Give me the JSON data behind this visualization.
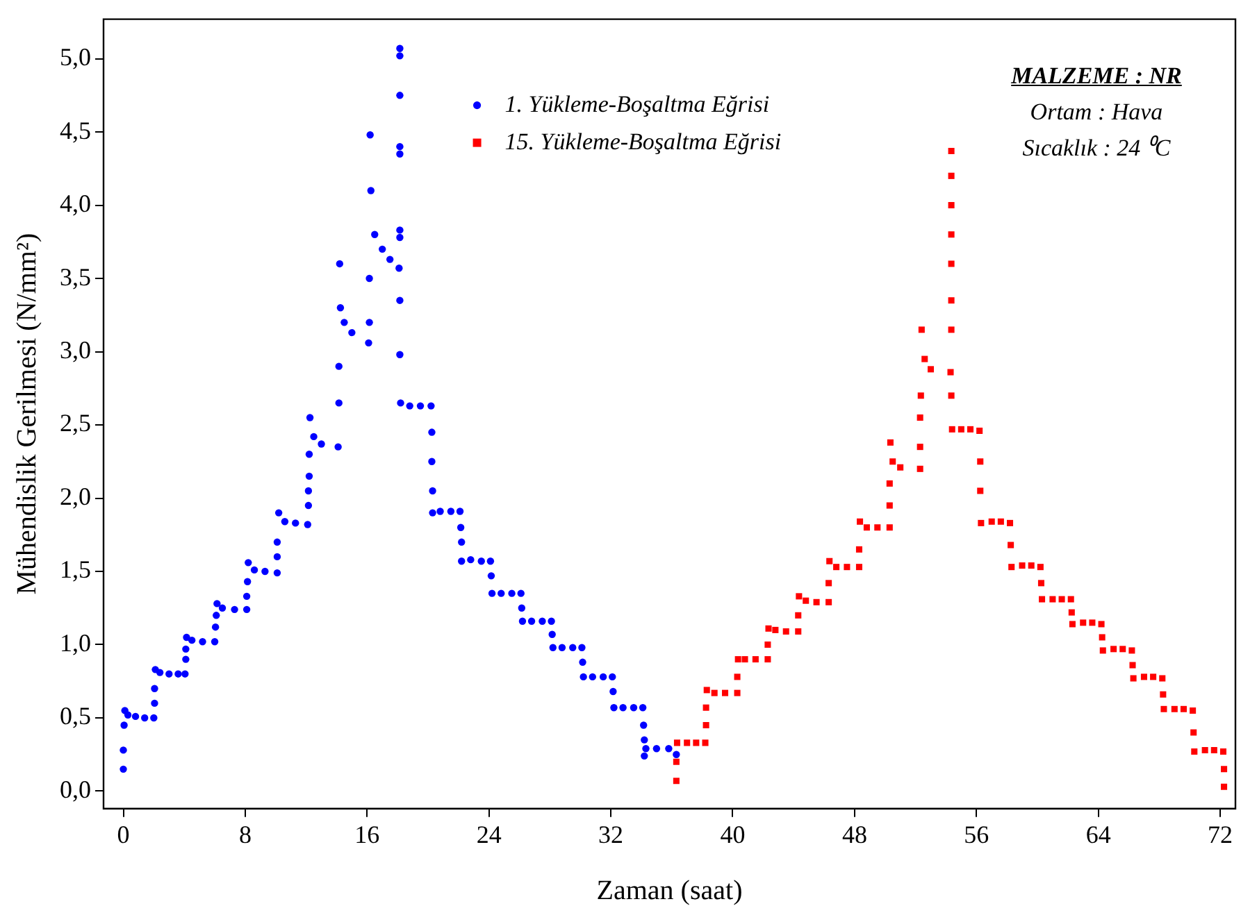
{
  "chart_data": {
    "type": "scatter",
    "xlabel": "Zaman (saat)",
    "ylabel": "Mühendislik Gerilmesi (N/mm²)",
    "annotations": [
      "MALZEME : NR",
      "Ortam : Hava",
      "Sıcaklık : 24 ⁰C"
    ],
    "xlim": [
      -1.3,
      73
    ],
    "ylim": [
      -0.12,
      5.27
    ],
    "xticks": [
      0,
      8,
      16,
      24,
      32,
      40,
      48,
      56,
      64,
      72
    ],
    "yticks": [
      {
        "value": 0,
        "label": "0,0"
      },
      {
        "value": 0.5,
        "label": "0,5"
      },
      {
        "value": 1,
        "label": "1,0"
      },
      {
        "value": 1.5,
        "label": "1,5"
      },
      {
        "value": 2,
        "label": "2,0"
      },
      {
        "value": 2.5,
        "label": "2,5"
      },
      {
        "value": 3,
        "label": "3,0"
      },
      {
        "value": 3.5,
        "label": "3,5"
      },
      {
        "value": 4,
        "label": "4,0"
      },
      {
        "value": 4.5,
        "label": "4,5"
      },
      {
        "value": 5,
        "label": "5,0"
      }
    ],
    "grid": false,
    "legend": "top",
    "series": [
      {
        "name": "1. Yükleme-Boşaltma Eğrisi",
        "color": "#0000ff",
        "marker": "circle",
        "x": [
          0,
          0,
          0.05,
          0.1,
          0.3,
          0.8,
          1.4,
          2.0,
          2.05,
          2.05,
          2.1,
          2.4,
          3.0,
          3.6,
          4.05,
          4.1,
          4.1,
          4.15,
          4.5,
          5.2,
          6.0,
          6.05,
          6.1,
          6.15,
          6.5,
          7.3,
          8.1,
          8.1,
          8.15,
          8.2,
          8.6,
          9.3,
          10.1,
          10.1,
          10.1,
          10.2,
          10.6,
          11.3,
          12.1,
          12.15,
          12.15,
          12.2,
          12.2,
          12.25,
          12.5,
          13.0,
          14.1,
          14.15,
          14.15,
          14.2,
          14.25,
          14.5,
          15.0,
          16.1,
          16.15,
          16.15,
          16.2,
          16.25,
          16.5,
          17.0,
          17.5,
          18.1,
          18.15,
          18.15,
          18.15,
          18.15,
          18.15,
          18.15,
          18.15,
          18.15,
          18.15,
          18.2,
          18.8,
          19.5,
          20.2,
          20.25,
          20.25,
          20.3,
          20.3,
          20.8,
          21.5,
          22.1,
          22.15,
          22.2,
          22.2,
          22.8,
          23.5,
          24.1,
          24.15,
          24.2,
          24.8,
          25.5,
          26.1,
          26.15,
          26.2,
          26.8,
          27.5,
          28.1,
          28.15,
          28.2,
          28.8,
          29.5,
          30.1,
          30.15,
          30.2,
          30.8,
          31.5,
          32.1,
          32.15,
          32.2,
          32.8,
          33.5,
          34.1,
          34.15,
          34.2,
          34.2,
          34.3,
          35.0,
          35.8,
          36.3
        ],
        "values": [
          0.15,
          0.28,
          0.45,
          0.55,
          0.52,
          0.51,
          0.5,
          0.5,
          0.6,
          0.7,
          0.83,
          0.81,
          0.8,
          0.8,
          0.8,
          0.9,
          0.97,
          1.05,
          1.03,
          1.02,
          1.02,
          1.12,
          1.2,
          1.28,
          1.25,
          1.24,
          1.24,
          1.33,
          1.43,
          1.56,
          1.51,
          1.5,
          1.49,
          1.6,
          1.7,
          1.9,
          1.84,
          1.83,
          1.82,
          1.95,
          2.05,
          2.15,
          2.3,
          2.55,
          2.42,
          2.37,
          2.35,
          2.65,
          2.9,
          3.6,
          3.3,
          3.2,
          3.13,
          3.06,
          3.2,
          3.5,
          4.48,
          4.1,
          3.8,
          3.7,
          3.63,
          3.57,
          5.07,
          5.02,
          4.75,
          4.4,
          4.35,
          3.83,
          3.78,
          3.35,
          2.98,
          2.65,
          2.63,
          2.63,
          2.63,
          2.45,
          2.25,
          2.05,
          1.9,
          1.91,
          1.91,
          1.91,
          1.8,
          1.7,
          1.57,
          1.58,
          1.57,
          1.57,
          1.47,
          1.35,
          1.35,
          1.35,
          1.35,
          1.25,
          1.16,
          1.16,
          1.16,
          1.16,
          1.07,
          0.98,
          0.98,
          0.98,
          0.98,
          0.88,
          0.78,
          0.78,
          0.78,
          0.78,
          0.68,
          0.57,
          0.57,
          0.57,
          0.57,
          0.45,
          0.35,
          0.24,
          0.29,
          0.29,
          0.29,
          0.25
        ]
      },
      {
        "name": "15. Yükleme-Boşaltma Eğrisi",
        "color": "#ff0000",
        "marker": "square",
        "x": [
          36.3,
          36.3,
          36.35,
          37.0,
          37.6,
          38.2,
          38.25,
          38.25,
          38.3,
          38.8,
          39.5,
          40.3,
          40.3,
          40.35,
          40.8,
          41.5,
          42.3,
          42.3,
          42.35,
          42.8,
          43.5,
          44.3,
          44.3,
          44.35,
          44.8,
          45.5,
          46.3,
          46.3,
          46.35,
          46.8,
          47.5,
          48.3,
          48.3,
          48.35,
          48.8,
          49.5,
          50.3,
          50.3,
          50.3,
          50.35,
          50.5,
          51.0,
          52.3,
          52.3,
          52.3,
          52.35,
          52.4,
          52.6,
          53.0,
          54.3,
          54.35,
          54.35,
          54.35,
          54.35,
          54.35,
          54.35,
          54.35,
          54.35,
          54.4,
          55.0,
          55.6,
          56.2,
          56.25,
          56.25,
          56.3,
          57.0,
          57.6,
          58.2,
          58.25,
          58.3,
          59.0,
          59.6,
          60.2,
          60.25,
          60.3,
          61.0,
          61.6,
          62.2,
          62.25,
          62.3,
          63.0,
          63.6,
          64.2,
          64.25,
          64.3,
          65.0,
          65.6,
          66.2,
          66.25,
          66.3,
          67.0,
          67.6,
          68.2,
          68.25,
          68.3,
          69.0,
          69.6,
          70.2,
          70.25,
          70.3,
          71.0,
          71.6,
          72.2,
          72.25,
          72.25
        ],
        "values": [
          0.07,
          0.2,
          0.33,
          0.33,
          0.33,
          0.33,
          0.45,
          0.57,
          0.69,
          0.67,
          0.67,
          0.67,
          0.78,
          0.9,
          0.9,
          0.9,
          0.9,
          1.0,
          1.11,
          1.1,
          1.09,
          1.09,
          1.2,
          1.33,
          1.3,
          1.29,
          1.29,
          1.42,
          1.57,
          1.53,
          1.53,
          1.53,
          1.65,
          1.84,
          1.8,
          1.8,
          1.8,
          1.95,
          2.1,
          2.38,
          2.25,
          2.21,
          2.2,
          2.35,
          2.55,
          2.7,
          3.15,
          2.95,
          2.88,
          2.86,
          4.37,
          4.2,
          4.0,
          3.8,
          3.6,
          3.35,
          3.15,
          2.7,
          2.47,
          2.47,
          2.47,
          2.46,
          2.25,
          2.05,
          1.83,
          1.84,
          1.84,
          1.83,
          1.68,
          1.53,
          1.54,
          1.54,
          1.53,
          1.42,
          1.31,
          1.31,
          1.31,
          1.31,
          1.22,
          1.14,
          1.15,
          1.15,
          1.14,
          1.05,
          0.96,
          0.97,
          0.97,
          0.96,
          0.86,
          0.77,
          0.78,
          0.78,
          0.77,
          0.66,
          0.56,
          0.56,
          0.56,
          0.55,
          0.4,
          0.27,
          0.28,
          0.28,
          0.27,
          0.15,
          0.03
        ]
      }
    ]
  }
}
